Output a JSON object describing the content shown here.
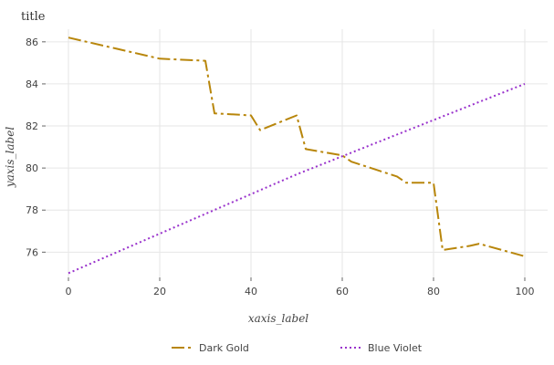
{
  "chart_data": {
    "type": "line",
    "title": "title",
    "xlabel": "xaxis_label",
    "ylabel": "yaxis_label",
    "xlim": [
      -5,
      105
    ],
    "ylim": [
      74.8,
      86.6
    ],
    "xticks": [
      0,
      20,
      40,
      60,
      80,
      100
    ],
    "yticks": [
      76,
      78,
      80,
      82,
      84,
      86
    ],
    "grid": true,
    "legend_position": "bottom",
    "series": [
      {
        "name": "Dark Gold",
        "color": "#b8860b",
        "style": "dashdot",
        "x": [
          0,
          20,
          30,
          32,
          40,
          42,
          50,
          52,
          60,
          62,
          72,
          74,
          80,
          82,
          88,
          90,
          100
        ],
        "y": [
          86.2,
          85.2,
          85.1,
          82.6,
          82.5,
          81.8,
          82.5,
          80.9,
          80.6,
          80.3,
          79.6,
          79.3,
          79.3,
          76.1,
          76.3,
          76.4,
          75.8
        ]
      },
      {
        "name": "Blue Violet",
        "color": "#9932cc",
        "style": "dotted",
        "x": [
          0,
          50,
          100
        ],
        "y": [
          75.0,
          79.7,
          84.0
        ]
      }
    ]
  }
}
